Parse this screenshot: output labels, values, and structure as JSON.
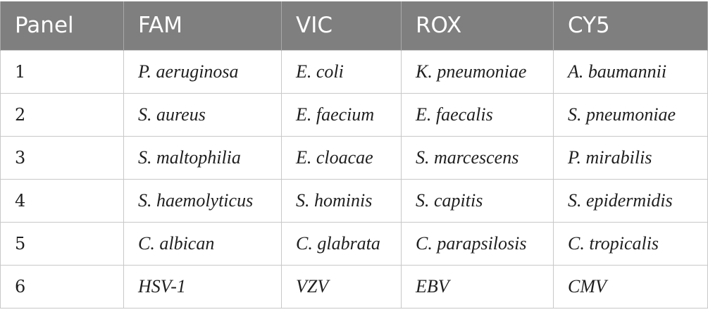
{
  "table": {
    "headers": [
      "Panel",
      "FAM",
      "VIC",
      "ROX",
      "CY5"
    ],
    "rows": [
      {
        "panel": "1",
        "fam": "P. aeruginosa",
        "vic": "E. coli",
        "rox": "K. pneumoniae",
        "cy5": "A. baumannii"
      },
      {
        "panel": "2",
        "fam": "S. aureus",
        "vic": "E. faecium",
        "rox": "E. faecalis",
        "cy5": "S. pneumoniae"
      },
      {
        "panel": "3",
        "fam": "S. maltophilia",
        "vic": "E. cloacae",
        "rox": "S. marcescens",
        "cy5": "P. mirabilis"
      },
      {
        "panel": "4",
        "fam": "S. haemolyticus",
        "vic": "S. hominis",
        "rox": "S. capitis",
        "cy5": "S. epidermidis"
      },
      {
        "panel": "5",
        "fam": "C. albican",
        "vic": "C. glabrata",
        "rox": "C. parapsilosis",
        "cy5": "C. tropicalis"
      },
      {
        "panel": "6",
        "fam": "HSV-1",
        "vic": "VZV",
        "rox": "EBV",
        "cy5": "CMV"
      }
    ]
  },
  "colors": {
    "header_bg": "#7f7f7f",
    "header_text": "#ffffff",
    "border": "#c8c8c8"
  }
}
